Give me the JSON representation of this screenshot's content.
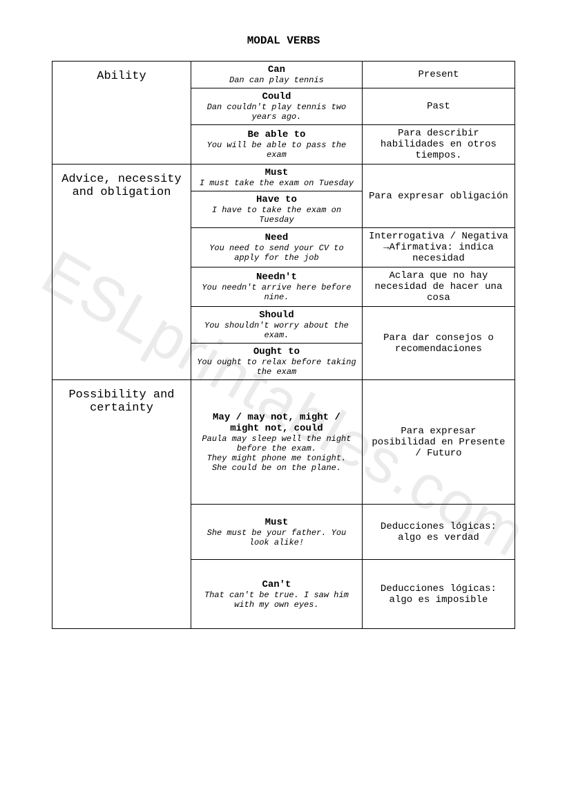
{
  "title": "MODAL VERBS",
  "watermark": "ESLprintables.com",
  "categories": [
    {
      "name": "Ability",
      "rows": [
        {
          "modal": "Can",
          "example": "Dan can play tennis",
          "desc": "Present"
        },
        {
          "modal": "Could",
          "example": "Dan couldn't play tennis two years ago.",
          "desc": "Past"
        },
        {
          "modal": "Be able to",
          "example": "You will be able to pass the exam",
          "desc": "Para describir habilidades en otros tiempos."
        }
      ]
    },
    {
      "name": "Advice, necessity and obligation",
      "rows": [
        {
          "modal": "Must",
          "example": "I must take the exam on Tuesday",
          "desc": "Para expresar obligación",
          "descRowspan": 2
        },
        {
          "modal": "Have to",
          "example": "I have to take the exam on Tuesday"
        },
        {
          "modal": "Need",
          "example": "You need to send your CV to apply for the job",
          "desc": "Interrogativa / Negativa\n→Afirmativa: indica necesidad"
        },
        {
          "modal": "Needn't",
          "example": "You needn't arrive here before nine.",
          "desc": "Aclara que no hay necesidad de hacer una cosa"
        },
        {
          "modal": "Should",
          "example": "You shouldn't worry about the exam.",
          "desc": "Para dar consejos o recomendaciones",
          "descRowspan": 2
        },
        {
          "modal": "Ought to",
          "example": "You ought to relax before taking the exam"
        }
      ]
    },
    {
      "name": "Possibility and certainty",
      "rows": [
        {
          "modal": "May / may not, might / might not, could",
          "example": "Paula may sleep well the night before the exam.\nThey might phone me tonight.\nShe could be on the plane.",
          "desc": "Para expresar posibilidad en Presente / Futuro",
          "extraHeight": "180px"
        },
        {
          "modal": "Must",
          "example": "She must be your father. You look alike!",
          "desc": "Deducciones lógicas: algo es verdad",
          "extraHeight": "80px"
        },
        {
          "modal": "Can't",
          "example": "That can't be true. I saw him with my own eyes.",
          "desc": "Deducciones lógicas: algo es imposible",
          "extraHeight": "100px"
        }
      ]
    }
  ]
}
